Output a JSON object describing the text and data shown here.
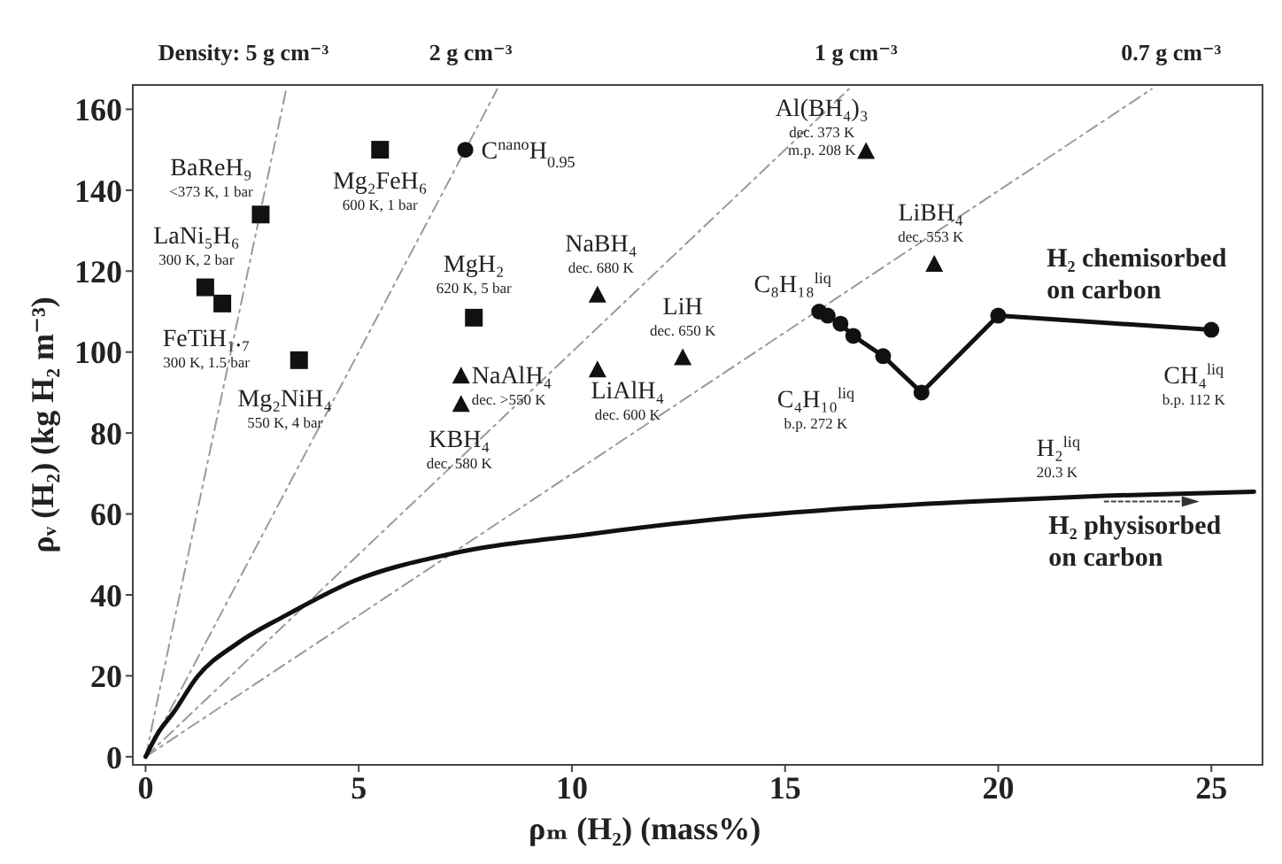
{
  "chart_data": {
    "type": "scatter",
    "xlabel": "ρₘ (H₂) (mass%)",
    "ylabel": "ρᵥ (H₂) (kg H₂ m⁻³)",
    "xlim": [
      -0.3,
      26.2
    ],
    "ylim": [
      -2,
      166
    ],
    "xticks": [
      0,
      5,
      10,
      15,
      20,
      25
    ],
    "yticks": [
      0,
      20,
      40,
      60,
      80,
      100,
      120,
      140,
      160
    ],
    "series": [
      {
        "type": "line",
        "color": "#9a9a9a",
        "line_style": "dashed",
        "marker": "none",
        "x": [
          0,
          3.3
        ],
        "values": [
          0,
          165
        ]
      },
      {
        "type": "line",
        "color": "#9a9a9a",
        "line_style": "dashed",
        "marker": "none",
        "x": [
          0,
          8.25
        ],
        "values": [
          0,
          165
        ]
      },
      {
        "type": "line",
        "color": "#9a9a9a",
        "line_style": "dashed",
        "marker": "none",
        "x": [
          0,
          16.5
        ],
        "values": [
          0,
          165
        ]
      },
      {
        "type": "line",
        "color": "#9a9a9a",
        "line_style": "dashed",
        "marker": "none",
        "x": [
          0,
          23.6
        ],
        "values": [
          0,
          165
        ]
      },
      {
        "type": "scatter",
        "marker": "square",
        "color": "#111111",
        "x": [
          1.4,
          1.8,
          2.7,
          3.6,
          5.5,
          7.7
        ],
        "values": [
          116,
          112,
          134,
          98,
          150,
          108.5
        ]
      },
      {
        "type": "scatter",
        "marker": "circle",
        "color": "#111111",
        "x": [
          7.5
        ],
        "values": [
          150
        ]
      },
      {
        "type": "scatter",
        "marker": "triangle",
        "color": "#111111",
        "x": [
          7.4,
          7.4,
          10.6,
          10.6,
          12.6,
          16.9,
          18.5
        ],
        "values": [
          94,
          87,
          114,
          95.5,
          98.5,
          149.5,
          121.6
        ]
      },
      {
        "type": "line",
        "name": "H₂ chemisorbed\non carbon",
        "marker": "circle",
        "line_style": "solid",
        "color": "#111111",
        "x": [
          15.8,
          16.0,
          16.3,
          16.6,
          17.3,
          18.2,
          20.0,
          25.0
        ],
        "values": [
          110,
          109,
          107,
          104,
          99,
          90,
          109,
          105.5
        ]
      },
      {
        "type": "line",
        "name": "H₂ physisorbed\non carbon",
        "marker": "none",
        "line_style": "solid",
        "color": "#111111",
        "x": [
          0,
          0.3,
          0.66,
          1.2,
          2.15,
          3.3,
          4.9,
          7.1,
          10.4,
          13.2,
          16,
          19.3,
          22.5,
          26
        ],
        "values": [
          0,
          6,
          11,
          19.6,
          28,
          35,
          43.5,
          50,
          55,
          58.5,
          61,
          63,
          64.5,
          65.5
        ]
      }
    ],
    "annotations": [
      {
        "text": "Density:  5 g cm⁻³",
        "x": 3.3,
        "y": 166
      },
      {
        "text": "2 g cm⁻³",
        "x": 8.25,
        "y": 166
      },
      {
        "text": "1 g cm⁻³",
        "x": 16.5,
        "y": 166
      },
      {
        "text": "0.7 g cm⁻³",
        "x": 23.6,
        "y": 166
      },
      {
        "text": "BaReH₉\n<373 K, 1 bar",
        "x": 2.7,
        "y": 134
      },
      {
        "text": "Mg₂FeH₆\n600 K, 1 bar",
        "x": 5.5,
        "y": 150
      },
      {
        "text": "C$^{nano}$H$_{0.95}$",
        "x": 7.5,
        "y": 150
      },
      {
        "text": "LaNi₅H₆\n300 K, 2 bar",
        "x": 1.4,
        "y": 116
      },
      {
        "text": "FeTiH₁.₇\n300 K, 1.5 bar",
        "x": 1.8,
        "y": 112
      },
      {
        "text": "Mg₂NiH₄\n550 K, 4 bar",
        "x": 3.6,
        "y": 98
      },
      {
        "text": "MgH₂\n620 K, 5 bar",
        "x": 7.7,
        "y": 108.5
      },
      {
        "text": "NaBH₄\ndec. 680 K",
        "x": 10.6,
        "y": 114
      },
      {
        "text": "LiH\ndec. 650 K",
        "x": 12.6,
        "y": 98.5
      },
      {
        "text": "NaAlH₄\ndec. >550 K",
        "x": 7.4,
        "y": 94
      },
      {
        "text": "KBH₄\ndec. 580 K",
        "x": 7.4,
        "y": 87
      },
      {
        "text": "LiAlH₄\ndec. 600 K",
        "x": 10.6,
        "y": 95.5
      },
      {
        "text": "Al(BH₄)₃\ndec. 373 K\nm.p. 208 K",
        "x": 16.9,
        "y": 149.5
      },
      {
        "text": "LiBH₄\ndec. 553 K",
        "x": 18.5,
        "y": 121.6
      },
      {
        "text": "C₈H₁₈$^{liq}$",
        "x": 15.8,
        "y": 110
      },
      {
        "text": "C₄H₁₀$^{liq}$\nb.p. 272 K",
        "x": 17.3,
        "y": 99
      },
      {
        "text": "CH₄$^{liq}$\nb.p. 112 K",
        "x": 25,
        "y": 105.5
      },
      "H₂$^{liq}$\n20.3 K"
    ]
  }
}
